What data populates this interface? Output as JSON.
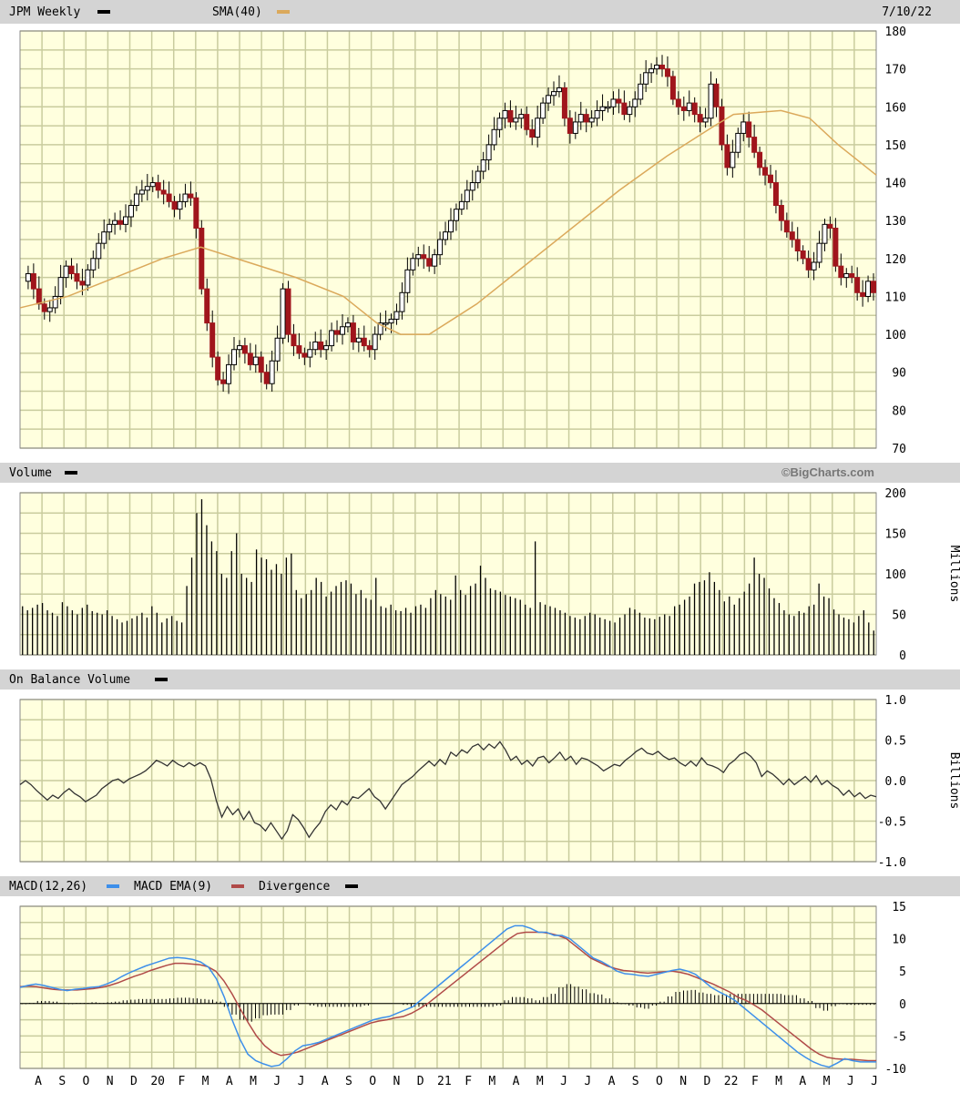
{
  "header": {
    "symbol_label": "JPM Weekly",
    "sma_label": "SMA(40)",
    "date": "7/10/22"
  },
  "panels": {
    "volume_title": "Volume",
    "watermark": "©BigCharts.com",
    "volume_unit": "Millions",
    "obv_title": "On Balance Volume",
    "obv_unit": "Billions",
    "macd_title": "MACD(12,26)",
    "macd_ema_title": "MACD EMA(9)",
    "divergence_title": "Divergence"
  },
  "x_axis_labels": [
    "A",
    "S",
    "O",
    "N",
    "D",
    "20",
    "F",
    "M",
    "A",
    "M",
    "J",
    "J",
    "A",
    "S",
    "O",
    "N",
    "D",
    "21",
    "F",
    "M",
    "A",
    "M",
    "J",
    "J",
    "A",
    "S",
    "O",
    "N",
    "D",
    "22",
    "F",
    "M",
    "A",
    "M",
    "J",
    "J"
  ],
  "colors": {
    "panel_bg": "#ffffde",
    "grid": "#c9cc9e",
    "header_bg": "#d4d4d4",
    "up_candle": "#ffffff",
    "down_candle": "#a0151c",
    "sma": "#dba95b",
    "macd": "#3d8fea",
    "macd_ema": "#b04a48",
    "divergence": "#000000",
    "obv_line": "#333333",
    "volume_bar": "#000000"
  },
  "chart_data": [
    {
      "type": "candlestick",
      "title": "JPM Weekly",
      "ylim": [
        70,
        180
      ],
      "yticks": [
        70,
        80,
        90,
        100,
        110,
        120,
        130,
        140,
        150,
        160,
        170,
        180
      ],
      "close_path": [
        114,
        116,
        112,
        108,
        106,
        107,
        110,
        115,
        118,
        116,
        114,
        113,
        117,
        120,
        124,
        127,
        129,
        130,
        129,
        131,
        134,
        137,
        138,
        139,
        140,
        138,
        137,
        135,
        133,
        135,
        137,
        136,
        128,
        112,
        103,
        94,
        88,
        87,
        92,
        96,
        97,
        95,
        92,
        94,
        90,
        87,
        93,
        99,
        112,
        100,
        97,
        95,
        94,
        96,
        98,
        96,
        97,
        101,
        100,
        102,
        103,
        98,
        99,
        97,
        96,
        100,
        103,
        103,
        104,
        106,
        111,
        117,
        120,
        121,
        120,
        118,
        121,
        125,
        127,
        130,
        133,
        135,
        138,
        140,
        143,
        146,
        150,
        154,
        157,
        159,
        156,
        157,
        158,
        154,
        152,
        157,
        161,
        163,
        164,
        165,
        157,
        153,
        156,
        158,
        156,
        157,
        159,
        160,
        160,
        162,
        161,
        158,
        160,
        162,
        166,
        169,
        170,
        171,
        170,
        168,
        162,
        160,
        159,
        161,
        158,
        156,
        157,
        166,
        160,
        150,
        144,
        148,
        153,
        156,
        152,
        148,
        144,
        142,
        140,
        134,
        130,
        127,
        125,
        122,
        120,
        117,
        119,
        124,
        129,
        128,
        118,
        115,
        116,
        115,
        111,
        110,
        114,
        111
      ],
      "sma_path": [
        [
          0,
          107
        ],
        [
          10,
          110
        ],
        [
          20,
          115
        ],
        [
          30,
          120
        ],
        [
          38,
          123
        ],
        [
          48,
          119
        ],
        [
          58,
          115
        ],
        [
          68,
          110
        ],
        [
          75,
          103
        ],
        [
          80,
          100
        ],
        [
          86,
          100
        ],
        [
          96,
          108
        ],
        [
          106,
          118
        ],
        [
          116,
          128
        ],
        [
          126,
          138
        ],
        [
          136,
          147
        ],
        [
          146,
          155
        ],
        [
          150,
          158
        ],
        [
          160,
          159
        ],
        [
          166,
          157
        ],
        [
          172,
          150
        ],
        [
          176,
          146
        ],
        [
          180,
          142
        ]
      ],
      "close_color_down_weeks": [
        2,
        4,
        11,
        27,
        33,
        34,
        35,
        40,
        45,
        48,
        51,
        56,
        60,
        64,
        76,
        84,
        98,
        104,
        111,
        119,
        121,
        124,
        129,
        133,
        139,
        143,
        146,
        150,
        155,
        157
      ]
    },
    {
      "type": "bar",
      "title": "Volume",
      "ylabel": "Millions",
      "ylim": [
        0,
        200
      ],
      "yticks": [
        0,
        50,
        100,
        150,
        200
      ],
      "values": [
        60,
        55,
        58,
        62,
        64,
        55,
        52,
        48,
        65,
        60,
        55,
        50,
        58,
        62,
        54,
        52,
        50,
        55,
        48,
        44,
        40,
        42,
        45,
        48,
        52,
        46,
        60,
        52,
        40,
        45,
        48,
        42,
        40,
        85,
        120,
        175,
        192,
        160,
        140,
        128,
        100,
        95,
        128,
        150,
        100,
        95,
        90,
        130,
        120,
        118,
        105,
        112,
        100,
        120,
        125,
        80,
        70,
        75,
        80,
        95,
        90,
        72,
        78,
        85,
        90,
        92,
        88,
        75,
        80,
        70,
        68,
        95,
        60,
        58,
        62,
        55,
        54,
        58,
        52,
        60,
        62,
        58,
        70,
        80,
        75,
        72,
        68,
        98,
        80,
        74,
        85,
        88,
        110,
        95,
        82,
        80,
        78,
        74,
        72,
        70,
        68,
        62,
        58,
        140,
        65,
        62,
        60,
        58,
        55,
        52,
        48,
        46,
        44,
        48,
        52,
        50,
        46,
        44,
        42,
        40,
        46,
        50,
        58,
        56,
        52,
        46,
        45,
        44,
        47,
        50,
        48,
        60,
        62,
        68,
        72,
        88,
        90,
        92,
        102,
        90,
        80,
        66,
        72,
        62,
        70,
        78,
        88,
        120,
        100,
        95,
        82,
        70,
        64,
        55,
        50,
        48,
        54,
        52,
        60,
        62,
        88,
        72,
        70,
        56,
        50,
        46,
        44,
        40,
        48,
        55,
        40,
        30
      ]
    },
    {
      "type": "line",
      "title": "On Balance Volume",
      "ylabel": "Billions",
      "ylim": [
        -1.0,
        1.0
      ],
      "yticks": [
        -1.0,
        -0.5,
        0.0,
        0.5,
        1.0
      ],
      "values": [
        -0.05,
        0.0,
        -0.05,
        -0.12,
        -0.18,
        -0.24,
        -0.18,
        -0.22,
        -0.15,
        -0.1,
        -0.16,
        -0.2,
        -0.26,
        -0.22,
        -0.18,
        -0.1,
        -0.05,
        0.0,
        0.02,
        -0.03,
        0.02,
        0.05,
        0.08,
        0.12,
        0.18,
        0.25,
        0.22,
        0.18,
        0.25,
        0.2,
        0.17,
        0.22,
        0.18,
        0.22,
        0.18,
        0.02,
        -0.25,
        -0.45,
        -0.32,
        -0.42,
        -0.35,
        -0.48,
        -0.38,
        -0.52,
        -0.55,
        -0.62,
        -0.52,
        -0.62,
        -0.72,
        -0.62,
        -0.42,
        -0.48,
        -0.58,
        -0.7,
        -0.6,
        -0.52,
        -0.38,
        -0.3,
        -0.36,
        -0.25,
        -0.3,
        -0.2,
        -0.22,
        -0.16,
        -0.1,
        -0.2,
        -0.25,
        -0.35,
        -0.25,
        -0.15,
        -0.05,
        0.0,
        0.05,
        0.12,
        0.18,
        0.24,
        0.18,
        0.26,
        0.2,
        0.35,
        0.3,
        0.38,
        0.34,
        0.42,
        0.45,
        0.38,
        0.45,
        0.4,
        0.48,
        0.38,
        0.25,
        0.3,
        0.2,
        0.25,
        0.18,
        0.28,
        0.3,
        0.22,
        0.28,
        0.35,
        0.25,
        0.3,
        0.2,
        0.28,
        0.26,
        0.22,
        0.18,
        0.12,
        0.16,
        0.2,
        0.18,
        0.25,
        0.3,
        0.36,
        0.4,
        0.34,
        0.32,
        0.36,
        0.3,
        0.26,
        0.28,
        0.22,
        0.18,
        0.24,
        0.18,
        0.28,
        0.2,
        0.18,
        0.15,
        0.1,
        0.2,
        0.25,
        0.32,
        0.35,
        0.3,
        0.22,
        0.05,
        0.12,
        0.08,
        0.02,
        -0.05,
        0.02,
        -0.05,
        0.0,
        0.05,
        -0.02,
        0.06,
        -0.05,
        0.0,
        -0.06,
        -0.1,
        -0.18,
        -0.12,
        -0.2,
        -0.15,
        -0.22,
        -0.18,
        -0.2
      ]
    },
    {
      "type": "line",
      "title": "MACD(12,26)",
      "ylim": [
        -10,
        15
      ],
      "yticks": [
        -10,
        -5,
        0,
        5,
        10,
        15
      ],
      "series": [
        {
          "name": "MACD(12,26)",
          "values": [
            2.5,
            2.8,
            3.0,
            2.8,
            2.5,
            2.2,
            2.0,
            2.2,
            2.3,
            2.5,
            2.6,
            3.0,
            3.5,
            4.2,
            4.8,
            5.3,
            5.8,
            6.2,
            6.6,
            7.0,
            7.1,
            7.0,
            6.8,
            6.4,
            5.6,
            3.8,
            1.0,
            -2.5,
            -5.5,
            -7.8,
            -8.8,
            -9.3,
            -9.7,
            -9.5,
            -8.5,
            -7.3,
            -6.5,
            -6.3,
            -6.0,
            -5.5,
            -5.0,
            -4.5,
            -4.0,
            -3.5,
            -3.0,
            -2.5,
            -2.2,
            -2.0,
            -1.5,
            -1.0,
            -0.5,
            0.5,
            1.5,
            2.5,
            3.5,
            4.5,
            5.5,
            6.5,
            7.5,
            8.5,
            9.5,
            10.5,
            11.5,
            12.0,
            12.0,
            11.6,
            11.0,
            11.0,
            10.5,
            10.5,
            10.0,
            9.0,
            8.0,
            7.0,
            6.5,
            5.8,
            5.0,
            4.6,
            4.5,
            4.3,
            4.2,
            4.5,
            4.8,
            5.1,
            5.3,
            5.0,
            4.5,
            3.5,
            2.5,
            1.8,
            1.2,
            0.5,
            -0.5,
            -1.5,
            -2.5,
            -3.5,
            -4.5,
            -5.5,
            -6.5,
            -7.5,
            -8.3,
            -9.0,
            -9.5,
            -9.8,
            -9.2,
            -8.5,
            -8.8,
            -9.0,
            -9.0,
            -9.0
          ]
        },
        {
          "name": "MACD EMA(9)",
          "values": [
            2.6,
            2.7,
            2.6,
            2.4,
            2.2,
            2.1,
            2.1,
            2.1,
            2.2,
            2.3,
            2.5,
            2.8,
            3.2,
            3.7,
            4.2,
            4.6,
            5.1,
            5.5,
            5.9,
            6.2,
            6.2,
            6.1,
            6.0,
            5.7,
            5.0,
            3.5,
            1.5,
            -0.8,
            -3.0,
            -5.0,
            -6.5,
            -7.5,
            -8.0,
            -7.8,
            -7.5,
            -7.0,
            -6.5,
            -6.0,
            -5.5,
            -5.0,
            -4.5,
            -4.0,
            -3.5,
            -3.0,
            -2.7,
            -2.5,
            -2.2,
            -2.0,
            -1.5,
            -0.8,
            0.0,
            1.0,
            2.0,
            3.0,
            4.0,
            5.0,
            6.0,
            7.0,
            8.0,
            9.0,
            10.0,
            10.8,
            11.0,
            11.0,
            11.0,
            10.8,
            10.5,
            10.0,
            9.0,
            8.0,
            7.0,
            6.4,
            5.8,
            5.4,
            5.1,
            5.0,
            4.8,
            4.7,
            4.8,
            4.9,
            5.0,
            4.8,
            4.5,
            4.0,
            3.5,
            3.0,
            2.4,
            1.8,
            1.0,
            0.5,
            -0.2,
            -1.0,
            -2.0,
            -3.0,
            -4.0,
            -5.0,
            -6.0,
            -7.0,
            -7.8,
            -8.3,
            -8.5,
            -8.6,
            -8.6,
            -8.7,
            -8.8,
            -8.8
          ]
        },
        {
          "name": "Divergence",
          "values": [
            -0.1,
            0.1,
            0.4,
            0.4,
            0.3,
            0.1,
            -0.1,
            0.1,
            0.1,
            0.2,
            0.1,
            0.2,
            0.3,
            0.5,
            0.6,
            0.7,
            0.7,
            0.7,
            0.7,
            0.8,
            0.9,
            0.9,
            0.8,
            0.7,
            0.6,
            0.3,
            -0.5,
            -1.7,
            -2.5,
            -2.8,
            -2.3,
            -1.8,
            -1.7,
            -1.7,
            -1.0,
            -0.3,
            0.0,
            -0.3,
            -0.5,
            -0.5,
            -0.5,
            -0.5,
            -0.5,
            -0.5,
            -0.3,
            0.0,
            0.0,
            0.0,
            0.0,
            -0.2,
            -0.5,
            -0.5,
            -0.5,
            -0.5,
            -0.5,
            -0.5,
            -0.5,
            -0.5,
            -0.5,
            -0.5,
            -0.5,
            -0.3,
            0.5,
            1.0,
            1.0,
            0.8,
            0.5,
            1.0,
            1.5,
            2.5,
            3.0,
            2.6,
            2.2,
            1.6,
            1.4,
            0.8,
            0.2,
            -0.1,
            -0.3,
            -0.6,
            -0.8,
            -0.3,
            0.3,
            1.1,
            1.8,
            2.0,
            2.1,
            1.7,
            1.5,
            1.3,
            1.4,
            1.5,
            1.5,
            1.5,
            1.5,
            1.5,
            1.5,
            1.5,
            1.3,
            1.3,
            0.8,
            0.4,
            -0.7,
            -1.1,
            -0.4,
            -0.1,
            -0.2,
            -0.2,
            -0.2,
            -0.2
          ]
        }
      ]
    }
  ]
}
